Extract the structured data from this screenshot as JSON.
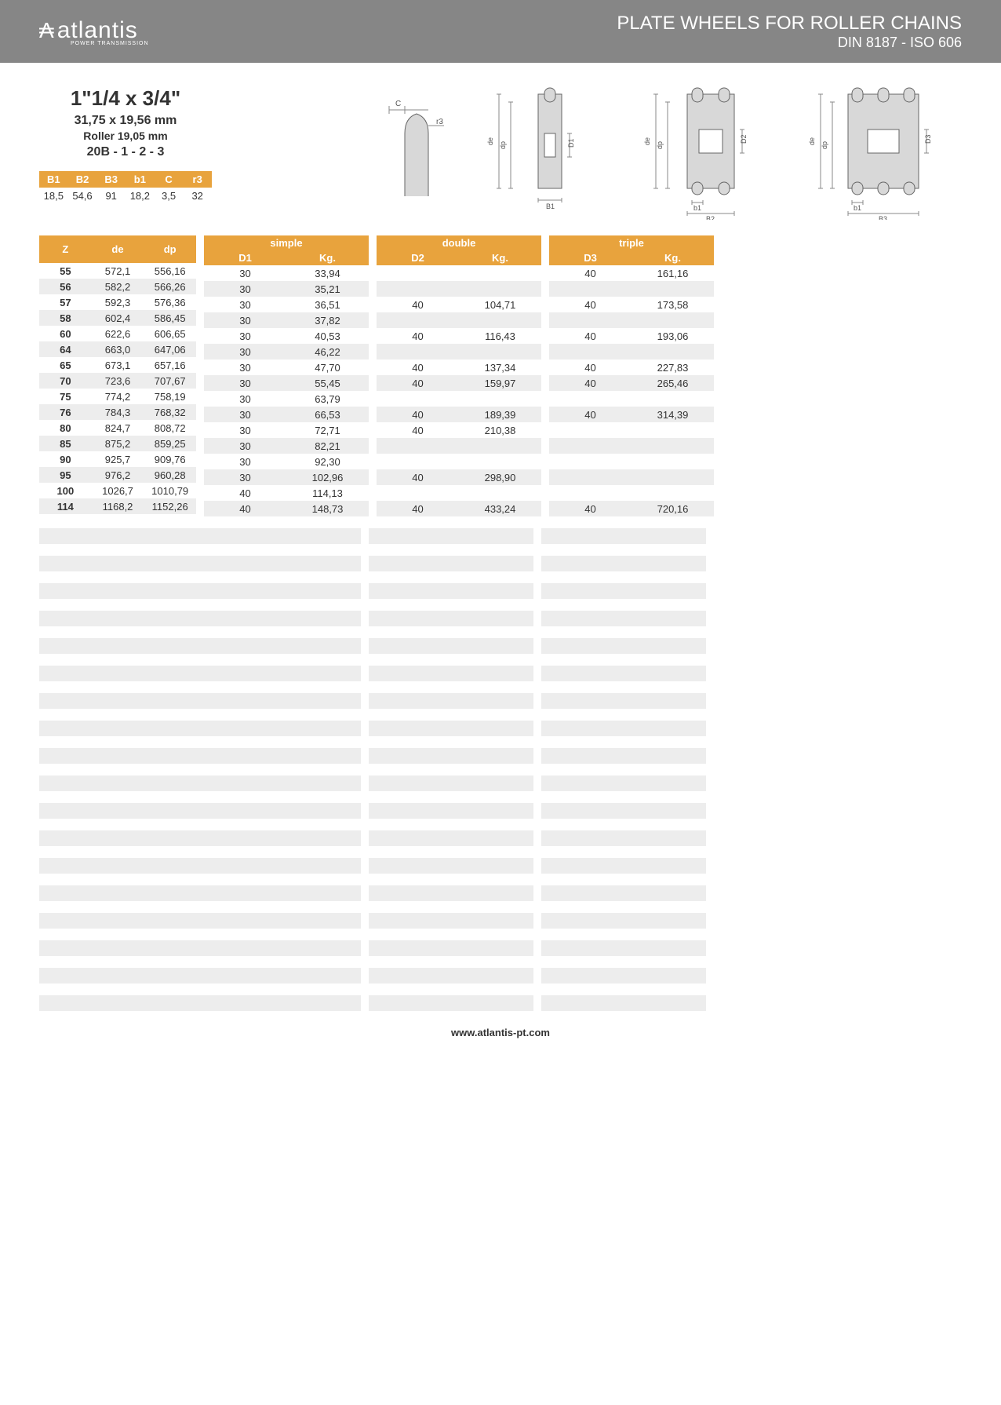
{
  "header": {
    "brand": "atlantis",
    "brand_sub": "POWER TRANSMISSION",
    "title": "PLATE WHEELS FOR ROLLER CHAINS",
    "subtitle": "DIN 8187 - ISO 606"
  },
  "spec": {
    "title": "1\"1/4 x 3/4\"",
    "dim": "31,75 x 19,56 mm",
    "roller": "Roller 19,05 mm",
    "code": "20B - 1 - 2 - 3",
    "cols": [
      "B1",
      "B2",
      "B3",
      "b1",
      "C",
      "r3"
    ],
    "vals": [
      "18,5",
      "54,6",
      "91",
      "18,2",
      "3,5",
      "32"
    ]
  },
  "diag_labels": {
    "C": "C",
    "r3": "r3",
    "de": "de",
    "dp": "dp",
    "D1": "D1",
    "D2": "D2",
    "D3": "D3",
    "B1": "B1",
    "B2": "B2",
    "B3": "B3",
    "b1": "b1"
  },
  "columns": {
    "z": "Z",
    "de": "de",
    "dp": "dp",
    "simple": "simple",
    "d1": "D1",
    "kg": "Kg.",
    "double": "double",
    "d2": "D2",
    "triple": "triple",
    "d3": "D3"
  },
  "rows": [
    {
      "z": "55",
      "de": "572,1",
      "dp": "556,16",
      "d1": "30",
      "kg1": "33,94",
      "d2": "",
      "kg2": "",
      "d3": "40",
      "kg3": "161,16"
    },
    {
      "z": "56",
      "de": "582,2",
      "dp": "566,26",
      "d1": "30",
      "kg1": "35,21",
      "d2": "",
      "kg2": "",
      "d3": "",
      "kg3": ""
    },
    {
      "z": "57",
      "de": "592,3",
      "dp": "576,36",
      "d1": "30",
      "kg1": "36,51",
      "d2": "40",
      "kg2": "104,71",
      "d3": "40",
      "kg3": "173,58"
    },
    {
      "z": "58",
      "de": "602,4",
      "dp": "586,45",
      "d1": "30",
      "kg1": "37,82",
      "d2": "",
      "kg2": "",
      "d3": "",
      "kg3": ""
    },
    {
      "z": "60",
      "de": "622,6",
      "dp": "606,65",
      "d1": "30",
      "kg1": "40,53",
      "d2": "40",
      "kg2": "116,43",
      "d3": "40",
      "kg3": "193,06"
    },
    {
      "z": "64",
      "de": "663,0",
      "dp": "647,06",
      "d1": "30",
      "kg1": "46,22",
      "d2": "",
      "kg2": "",
      "d3": "",
      "kg3": ""
    },
    {
      "z": "65",
      "de": "673,1",
      "dp": "657,16",
      "d1": "30",
      "kg1": "47,70",
      "d2": "40",
      "kg2": "137,34",
      "d3": "40",
      "kg3": "227,83"
    },
    {
      "z": "70",
      "de": "723,6",
      "dp": "707,67",
      "d1": "30",
      "kg1": "55,45",
      "d2": "40",
      "kg2": "159,97",
      "d3": "40",
      "kg3": "265,46"
    },
    {
      "z": "75",
      "de": "774,2",
      "dp": "758,19",
      "d1": "30",
      "kg1": "63,79",
      "d2": "",
      "kg2": "",
      "d3": "",
      "kg3": ""
    },
    {
      "z": "76",
      "de": "784,3",
      "dp": "768,32",
      "d1": "30",
      "kg1": "66,53",
      "d2": "40",
      "kg2": "189,39",
      "d3": "40",
      "kg3": "314,39"
    },
    {
      "z": "80",
      "de": "824,7",
      "dp": "808,72",
      "d1": "30",
      "kg1": "72,71",
      "d2": "40",
      "kg2": "210,38",
      "d3": "",
      "kg3": ""
    },
    {
      "z": "85",
      "de": "875,2",
      "dp": "859,25",
      "d1": "30",
      "kg1": "82,21",
      "d2": "",
      "kg2": "",
      "d3": "",
      "kg3": ""
    },
    {
      "z": "90",
      "de": "925,7",
      "dp": "909,76",
      "d1": "30",
      "kg1": "92,30",
      "d2": "",
      "kg2": "",
      "d3": "",
      "kg3": ""
    },
    {
      "z": "95",
      "de": "976,2",
      "dp": "960,28",
      "d1": "30",
      "kg1": "102,96",
      "d2": "40",
      "kg2": "298,90",
      "d3": "",
      "kg3": ""
    },
    {
      "z": "100",
      "de": "1026,7",
      "dp": "1010,79",
      "d1": "40",
      "kg1": "114,13",
      "d2": "",
      "kg2": "",
      "d3": "",
      "kg3": ""
    },
    {
      "z": "114",
      "de": "1168,2",
      "dp": "1152,26",
      "d1": "40",
      "kg1": "148,73",
      "d2": "40",
      "kg2": "433,24",
      "d3": "40",
      "kg3": "720,16"
    }
  ],
  "empty_rows": 18,
  "footer": "www.atlantis-pt.com",
  "colors": {
    "header_bg": "#868686",
    "accent": "#e8a33d",
    "stripe": "#ededed"
  }
}
